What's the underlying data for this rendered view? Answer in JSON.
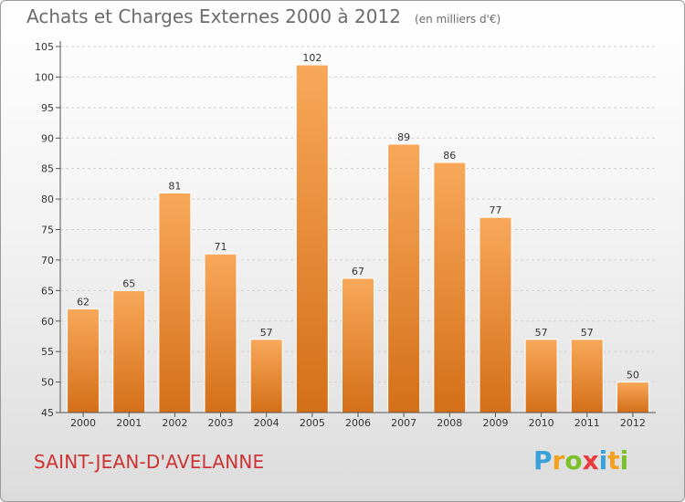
{
  "chart_data": {
    "type": "bar",
    "title": "Achats et Charges Externes 2000 à 2012",
    "unit": "(en milliers d'€)",
    "categories": [
      "2000",
      "2001",
      "2002",
      "2003",
      "2004",
      "2005",
      "2006",
      "2007",
      "2008",
      "2009",
      "2010",
      "2011",
      "2012"
    ],
    "values": [
      62,
      65,
      81,
      71,
      57,
      102,
      67,
      89,
      86,
      77,
      57,
      57,
      50
    ],
    "ylim": [
      45,
      105
    ],
    "yticks": [
      45,
      50,
      55,
      60,
      65,
      70,
      75,
      80,
      85,
      90,
      95,
      100,
      105
    ],
    "grid": true,
    "bar_color": "#f08a2c"
  },
  "place": "SAINT-JEAN-D'AVELANNE",
  "brand": {
    "letters": [
      "P",
      "r",
      "o",
      "x",
      "i",
      "t",
      "i"
    ],
    "colors": [
      "#3aa0d8",
      "#f2a11f",
      "#7bbf2a",
      "#e83b3b",
      "#3aa0d8",
      "#f2a11f",
      "#7bbf2a"
    ]
  }
}
